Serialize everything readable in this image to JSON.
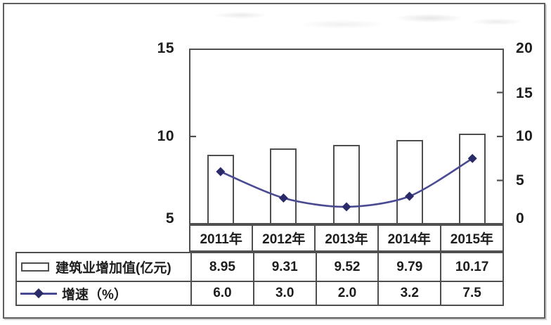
{
  "axes": {
    "left_ticks": [
      "15",
      "10",
      "5"
    ],
    "right_ticks": [
      "20",
      "15",
      "10",
      "5",
      "0"
    ]
  },
  "table": {
    "years": [
      "2011年",
      "2012年",
      "2013年",
      "2014年",
      "2015年"
    ],
    "rows": [
      {
        "icon": "bar-swatch-icon",
        "label": "建筑业增加值(亿元)",
        "values": [
          "8.95",
          "9.31",
          "9.52",
          "9.79",
          "10.17"
        ]
      },
      {
        "icon": "line-marker-icon",
        "label": "增速（%）",
        "values": [
          "6.0",
          "3.0",
          "2.0",
          "3.2",
          "7.5"
        ]
      }
    ]
  },
  "chart_data": {
    "type": "bar",
    "title": "",
    "xlabel": "",
    "ylabel": "",
    "categories": [
      "2011年",
      "2012年",
      "2013年",
      "2014年",
      "2015年"
    ],
    "series": [
      {
        "name": "建筑业增加值(亿元)",
        "chart": "bar",
        "axis": "left",
        "values": [
          8.95,
          9.31,
          9.52,
          9.79,
          10.17
        ]
      },
      {
        "name": "增速（%）",
        "chart": "line",
        "axis": "right",
        "values": [
          6.0,
          3.0,
          2.0,
          3.2,
          7.5
        ]
      }
    ],
    "left_axis": {
      "range": [
        5,
        15
      ],
      "ticks": [
        5,
        10,
        15
      ]
    },
    "right_axis": {
      "range": [
        0,
        20
      ],
      "ticks": [
        0,
        5,
        10,
        15,
        20
      ]
    },
    "grid": false,
    "legend_position": "table-left"
  },
  "colors": {
    "line": "#4a4a93",
    "marker": "#2b2b6a",
    "bar_fill": "#ffffff",
    "bar_border": "#4f4f4f",
    "table_border": "#4f4f4f",
    "text": "#1d1d1d"
  }
}
